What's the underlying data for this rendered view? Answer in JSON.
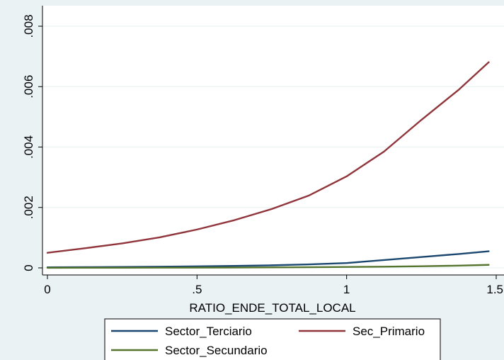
{
  "chart_data": {
    "type": "line",
    "title": "",
    "xlabel": "RATIO_ENDE_TOTAL_LOCAL",
    "ylabel": "",
    "xlim": [
      0,
      1.5
    ],
    "ylim": [
      0,
      0.008
    ],
    "x_ticks": [
      {
        "value": 0,
        "label": "0"
      },
      {
        "value": 0.5,
        "label": ".5"
      },
      {
        "value": 1,
        "label": "1"
      },
      {
        "value": 1.5,
        "label": "1.5"
      }
    ],
    "y_ticks": [
      {
        "value": 0,
        "label": "0"
      },
      {
        "value": 0.002,
        "label": ".002"
      },
      {
        "value": 0.004,
        "label": ".004"
      },
      {
        "value": 0.006,
        "label": ".006"
      },
      {
        "value": 0.008,
        "label": ".008"
      }
    ],
    "grid": true,
    "legend_position": "bottom",
    "x": [
      0,
      0.125,
      0.25,
      0.375,
      0.5,
      0.625,
      0.75,
      0.875,
      1.0,
      1.125,
      1.25,
      1.375,
      1.475
    ],
    "series": [
      {
        "name": "Sector_Terciario",
        "color": "#1a476f",
        "values": [
          2e-05,
          2.5e-05,
          3.1e-05,
          4e-05,
          5e-05,
          6.5e-05,
          8.5e-05,
          0.000115,
          0.00016,
          0.00026,
          0.00036,
          0.00046,
          0.00055
        ]
      },
      {
        "name": "Sec_Primario",
        "color": "#90353b",
        "values": [
          0.0005,
          0.00065,
          0.00081,
          0.00101,
          0.00127,
          0.00158,
          0.00195,
          0.0024,
          0.00303,
          0.00385,
          0.0049,
          0.0059,
          0.00681
        ]
      },
      {
        "name": "Sector_Secundario",
        "color": "#55752f",
        "values": [
          3e-06,
          4e-06,
          5e-06,
          7e-06,
          9e-06,
          1.2e-05,
          1.6e-05,
          2.2e-05,
          3e-05,
          4e-05,
          5.5e-05,
          7.5e-05,
          0.0001
        ]
      }
    ],
    "legend_order": [
      0,
      1,
      2
    ]
  }
}
